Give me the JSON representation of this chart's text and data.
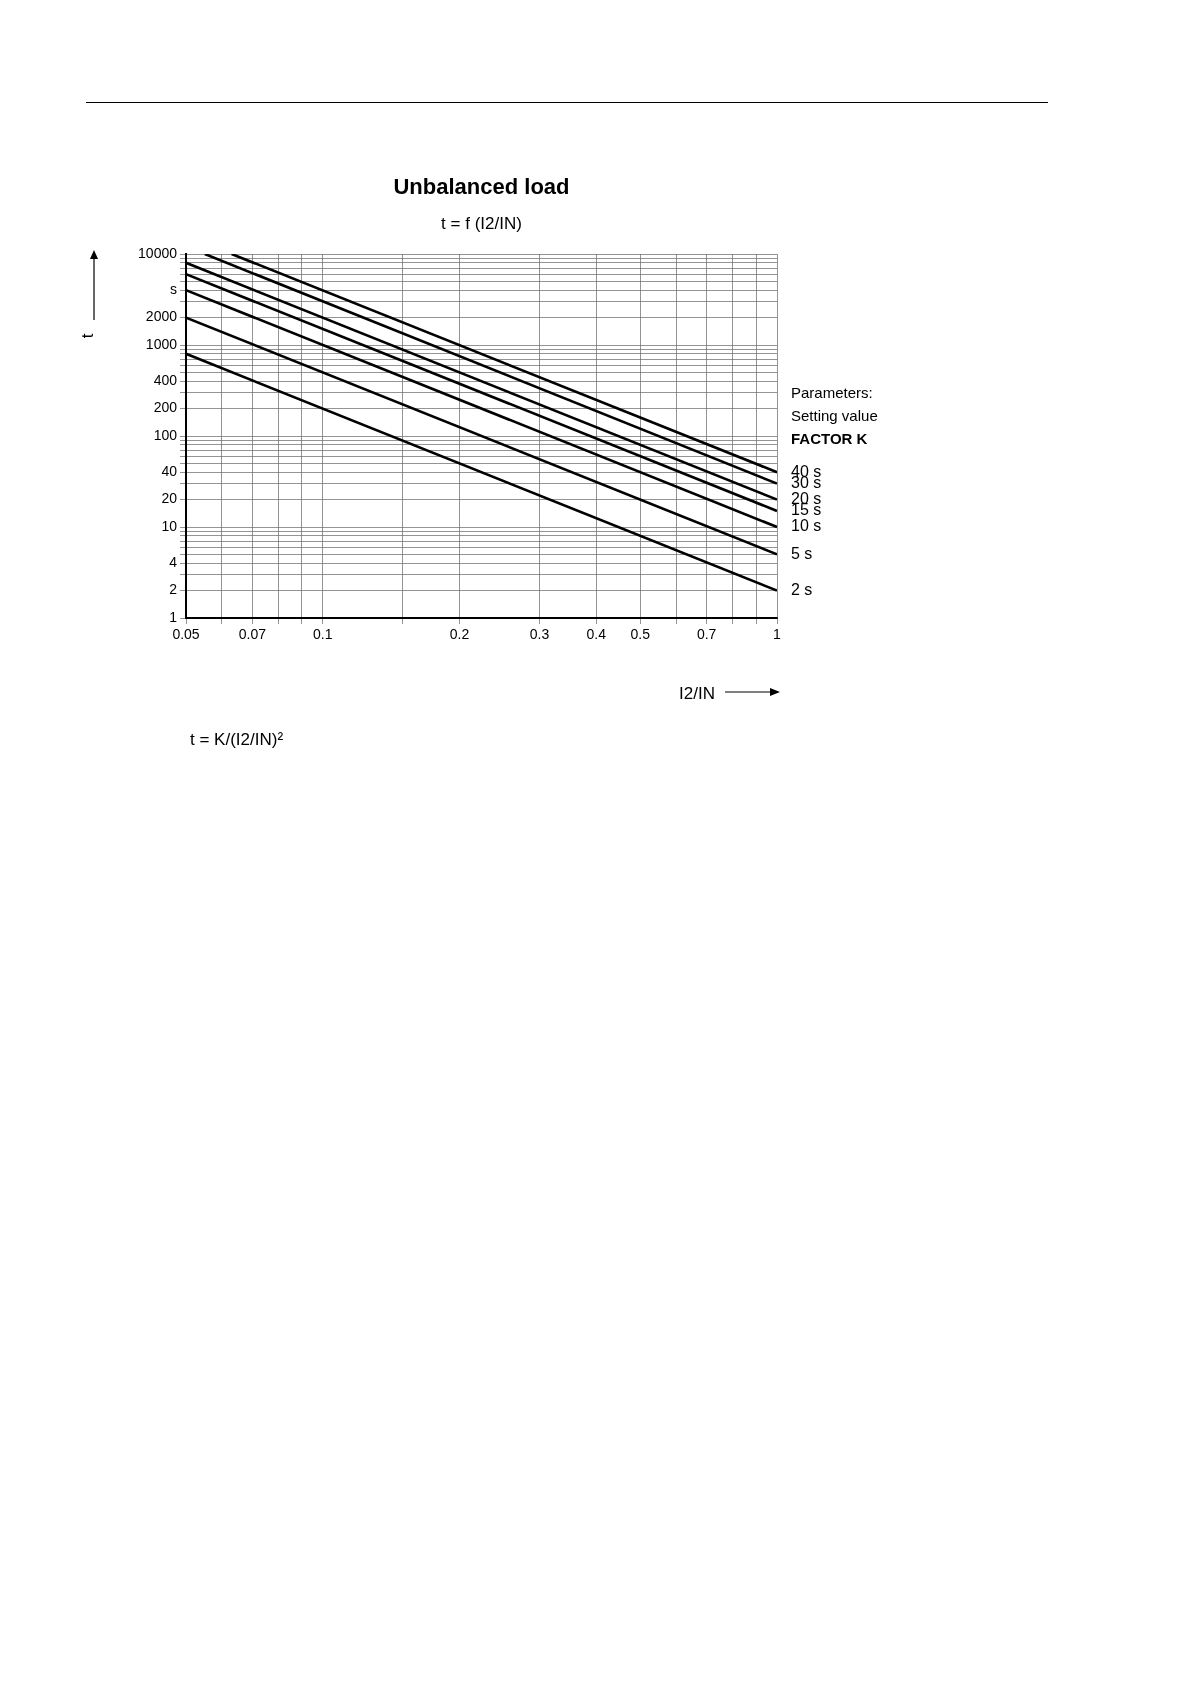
{
  "chart_data": {
    "type": "line",
    "title": "Unbalanced load",
    "subtitle": "t = f (I2/IN)",
    "xlabel": "I2/IN",
    "ylabel": "t",
    "log": "xy",
    "grid": true,
    "legend": false,
    "marker": "none",
    "line_style": "solid",
    "xlim": [
      0.05,
      1
    ],
    "ylim": [
      1,
      10000
    ],
    "xticks": [
      0.05,
      {
        "value": 0.06,
        "label": null
      },
      0.07,
      {
        "value": 0.08,
        "label": null
      },
      {
        "value": 0.09,
        "label": null
      },
      0.1,
      {
        "value": 0.15,
        "label": null
      },
      0.2,
      0.3,
      0.4,
      0.5,
      {
        "value": 0.6,
        "label": null
      },
      0.7,
      {
        "value": 0.8,
        "label": null
      },
      {
        "value": 0.9,
        "label": null
      },
      1
    ],
    "yticks": [
      1,
      2,
      {
        "value": 3,
        "label": null
      },
      4,
      {
        "value": 5,
        "label": null
      },
      {
        "value": 6,
        "label": null
      },
      {
        "value": 7,
        "label": null
      },
      {
        "value": 8,
        "label": null
      },
      {
        "value": 9,
        "label": null
      },
      10,
      20,
      {
        "value": 30,
        "label": null
      },
      40,
      {
        "value": 50,
        "label": null
      },
      {
        "value": 60,
        "label": null
      },
      {
        "value": 70,
        "label": null
      },
      {
        "value": 80,
        "label": null
      },
      {
        "value": 90,
        "label": null
      },
      100,
      200,
      {
        "value": 300,
        "label": null
      },
      400,
      {
        "value": 500,
        "label": null
      },
      {
        "value": 600,
        "label": null
      },
      {
        "value": 700,
        "label": null
      },
      {
        "value": 800,
        "label": null
      },
      {
        "value": 900,
        "label": null
      },
      1000,
      2000,
      {
        "value": 3000,
        "label": null
      },
      {
        "value": 4000,
        "label": "s"
      },
      {
        "value": 5000,
        "label": null
      },
      {
        "value": 6000,
        "label": null
      },
      {
        "value": 7000,
        "label": null
      },
      {
        "value": 8000,
        "label": null
      },
      {
        "value": 9000,
        "label": null
      },
      10000
    ],
    "series": [
      {
        "name": "40 s",
        "color": "#000000",
        "x": [
          0.063,
          1
        ],
        "values": [
          10000,
          40
        ]
      },
      {
        "name": "30 s",
        "color": "#000000",
        "x": [
          0.055,
          1
        ],
        "values": [
          10000,
          30
        ]
      },
      {
        "name": "20 s",
        "color": "#000000",
        "x": [
          0.05,
          1
        ],
        "values": [
          8000,
          20
        ]
      },
      {
        "name": "15 s",
        "color": "#000000",
        "x": [
          0.05,
          1
        ],
        "values": [
          6000,
          15
        ]
      },
      {
        "name": "10 s",
        "color": "#000000",
        "x": [
          0.05,
          1
        ],
        "values": [
          4000,
          10
        ]
      },
      {
        "name": "5 s",
        "color": "#000000",
        "x": [
          0.05,
          1
        ],
        "values": [
          2000,
          5
        ]
      },
      {
        "name": "2 s",
        "color": "#000000",
        "x": [
          0.05,
          1
        ],
        "values": [
          800,
          2
        ]
      }
    ],
    "legend_title": "FACTOR K",
    "annotations": [
      "Parameters:",
      "Setting value",
      "t = K/(I2/IN)²"
    ]
  }
}
